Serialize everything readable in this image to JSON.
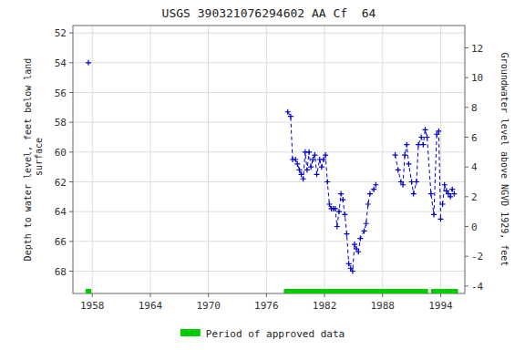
{
  "chart_data": {
    "type": "line",
    "title": "USGS 390321076294602 AA Cf  64",
    "ylabel": "Depth to water level, feet below land\n surface",
    "y2label": "Groundwater level above NGVD 1929, feet",
    "xlim": [
      1956.0,
      1996.5
    ],
    "xticks": [
      1958,
      1964,
      1970,
      1976,
      1982,
      1988,
      1994
    ],
    "ylim": [
      69.5,
      51.5
    ],
    "yticks": [
      52,
      54,
      56,
      58,
      60,
      62,
      64,
      66,
      68
    ],
    "y2lim": [
      -4.5,
      13.5
    ],
    "y2ticks": [
      -4,
      -2,
      0,
      2,
      4,
      6,
      8,
      10,
      12
    ],
    "grid": true,
    "legend": "bottom",
    "series": [
      {
        "color": "#0000cc",
        "marker": "plus",
        "line_style": "dashed",
        "x": [
          1957.6
        ],
        "values": [
          54.0
        ]
      },
      {
        "color": "#0000cc",
        "marker": "plus",
        "line_style": "dashed",
        "x": [
          1978.2,
          1978.5,
          1978.7,
          1979.0,
          1979.2,
          1979.4,
          1979.6,
          1979.8,
          1980.0,
          1980.2,
          1980.4,
          1980.6,
          1980.8,
          1981.0,
          1981.2,
          1981.5,
          1981.7,
          1981.9,
          1982.1,
          1982.3,
          1982.5,
          1982.7,
          1982.9,
          1983.1,
          1983.3,
          1983.5,
          1983.7,
          1983.9,
          1984.1,
          1984.3,
          1984.5,
          1984.7,
          1984.9,
          1985.1,
          1985.3,
          1985.5,
          1985.7,
          1986.1,
          1986.3,
          1986.5,
          1986.7,
          1987.1,
          1987.3
        ],
        "values": [
          57.3,
          57.6,
          60.5,
          60.5,
          60.8,
          61.2,
          61.5,
          61.8,
          60.0,
          61.2,
          60.0,
          61.0,
          60.5,
          60.2,
          61.5,
          60.5,
          61.0,
          60.5,
          60.2,
          62.0,
          63.5,
          63.8,
          63.8,
          63.8,
          65.0,
          64.0,
          62.8,
          63.2,
          64.2,
          65.5,
          67.5,
          67.8,
          68.0,
          66.2,
          66.5,
          66.7,
          65.8,
          65.3,
          64.8,
          63.5,
          62.8,
          62.5,
          62.2
        ]
      },
      {
        "color": "#0000cc",
        "marker": "plus",
        "line_style": "dashed",
        "x": [
          1989.3,
          1989.6,
          1989.9
        ],
        "values": [
          60.2,
          61.2,
          62.0
        ]
      },
      {
        "color": "#0000cc",
        "marker": "plus",
        "line_style": "dashed",
        "x": [
          1990.1,
          1990.3,
          1990.5,
          1990.7,
          1991.0,
          1991.2,
          1991.5,
          1991.7,
          1992.0,
          1992.2,
          1992.4,
          1992.6,
          1993.0,
          1993.3,
          1993.6
        ],
        "values": [
          62.2,
          60.2,
          59.5,
          60.8,
          62.0,
          62.8,
          62.0,
          59.5,
          59.0,
          59.5,
          58.5,
          59.0,
          62.8,
          64.2,
          58.8
        ]
      },
      {
        "color": "#0000cc",
        "marker": "plus",
        "line_style": "dashed",
        "x": [
          1993.8,
          1994.0
        ],
        "values": [
          58.6,
          64.5
        ]
      },
      {
        "color": "#0000cc",
        "marker": "plus",
        "line_style": "dashed",
        "x": [
          1994.2,
          1994.4,
          1994.6,
          1994.8,
          1995.0,
          1995.2,
          1995.4
        ],
        "values": [
          63.5,
          62.2,
          62.6,
          62.8,
          63.0,
          62.5,
          62.8
        ]
      },
      {
        "type": "period",
        "name": "Period of approved data",
        "color": "#00cc00",
        "values": [
          [
            1957.3,
            1957.9
          ],
          [
            1977.8,
            1992.7
          ],
          [
            1993.0,
            1995.8
          ]
        ]
      }
    ]
  }
}
